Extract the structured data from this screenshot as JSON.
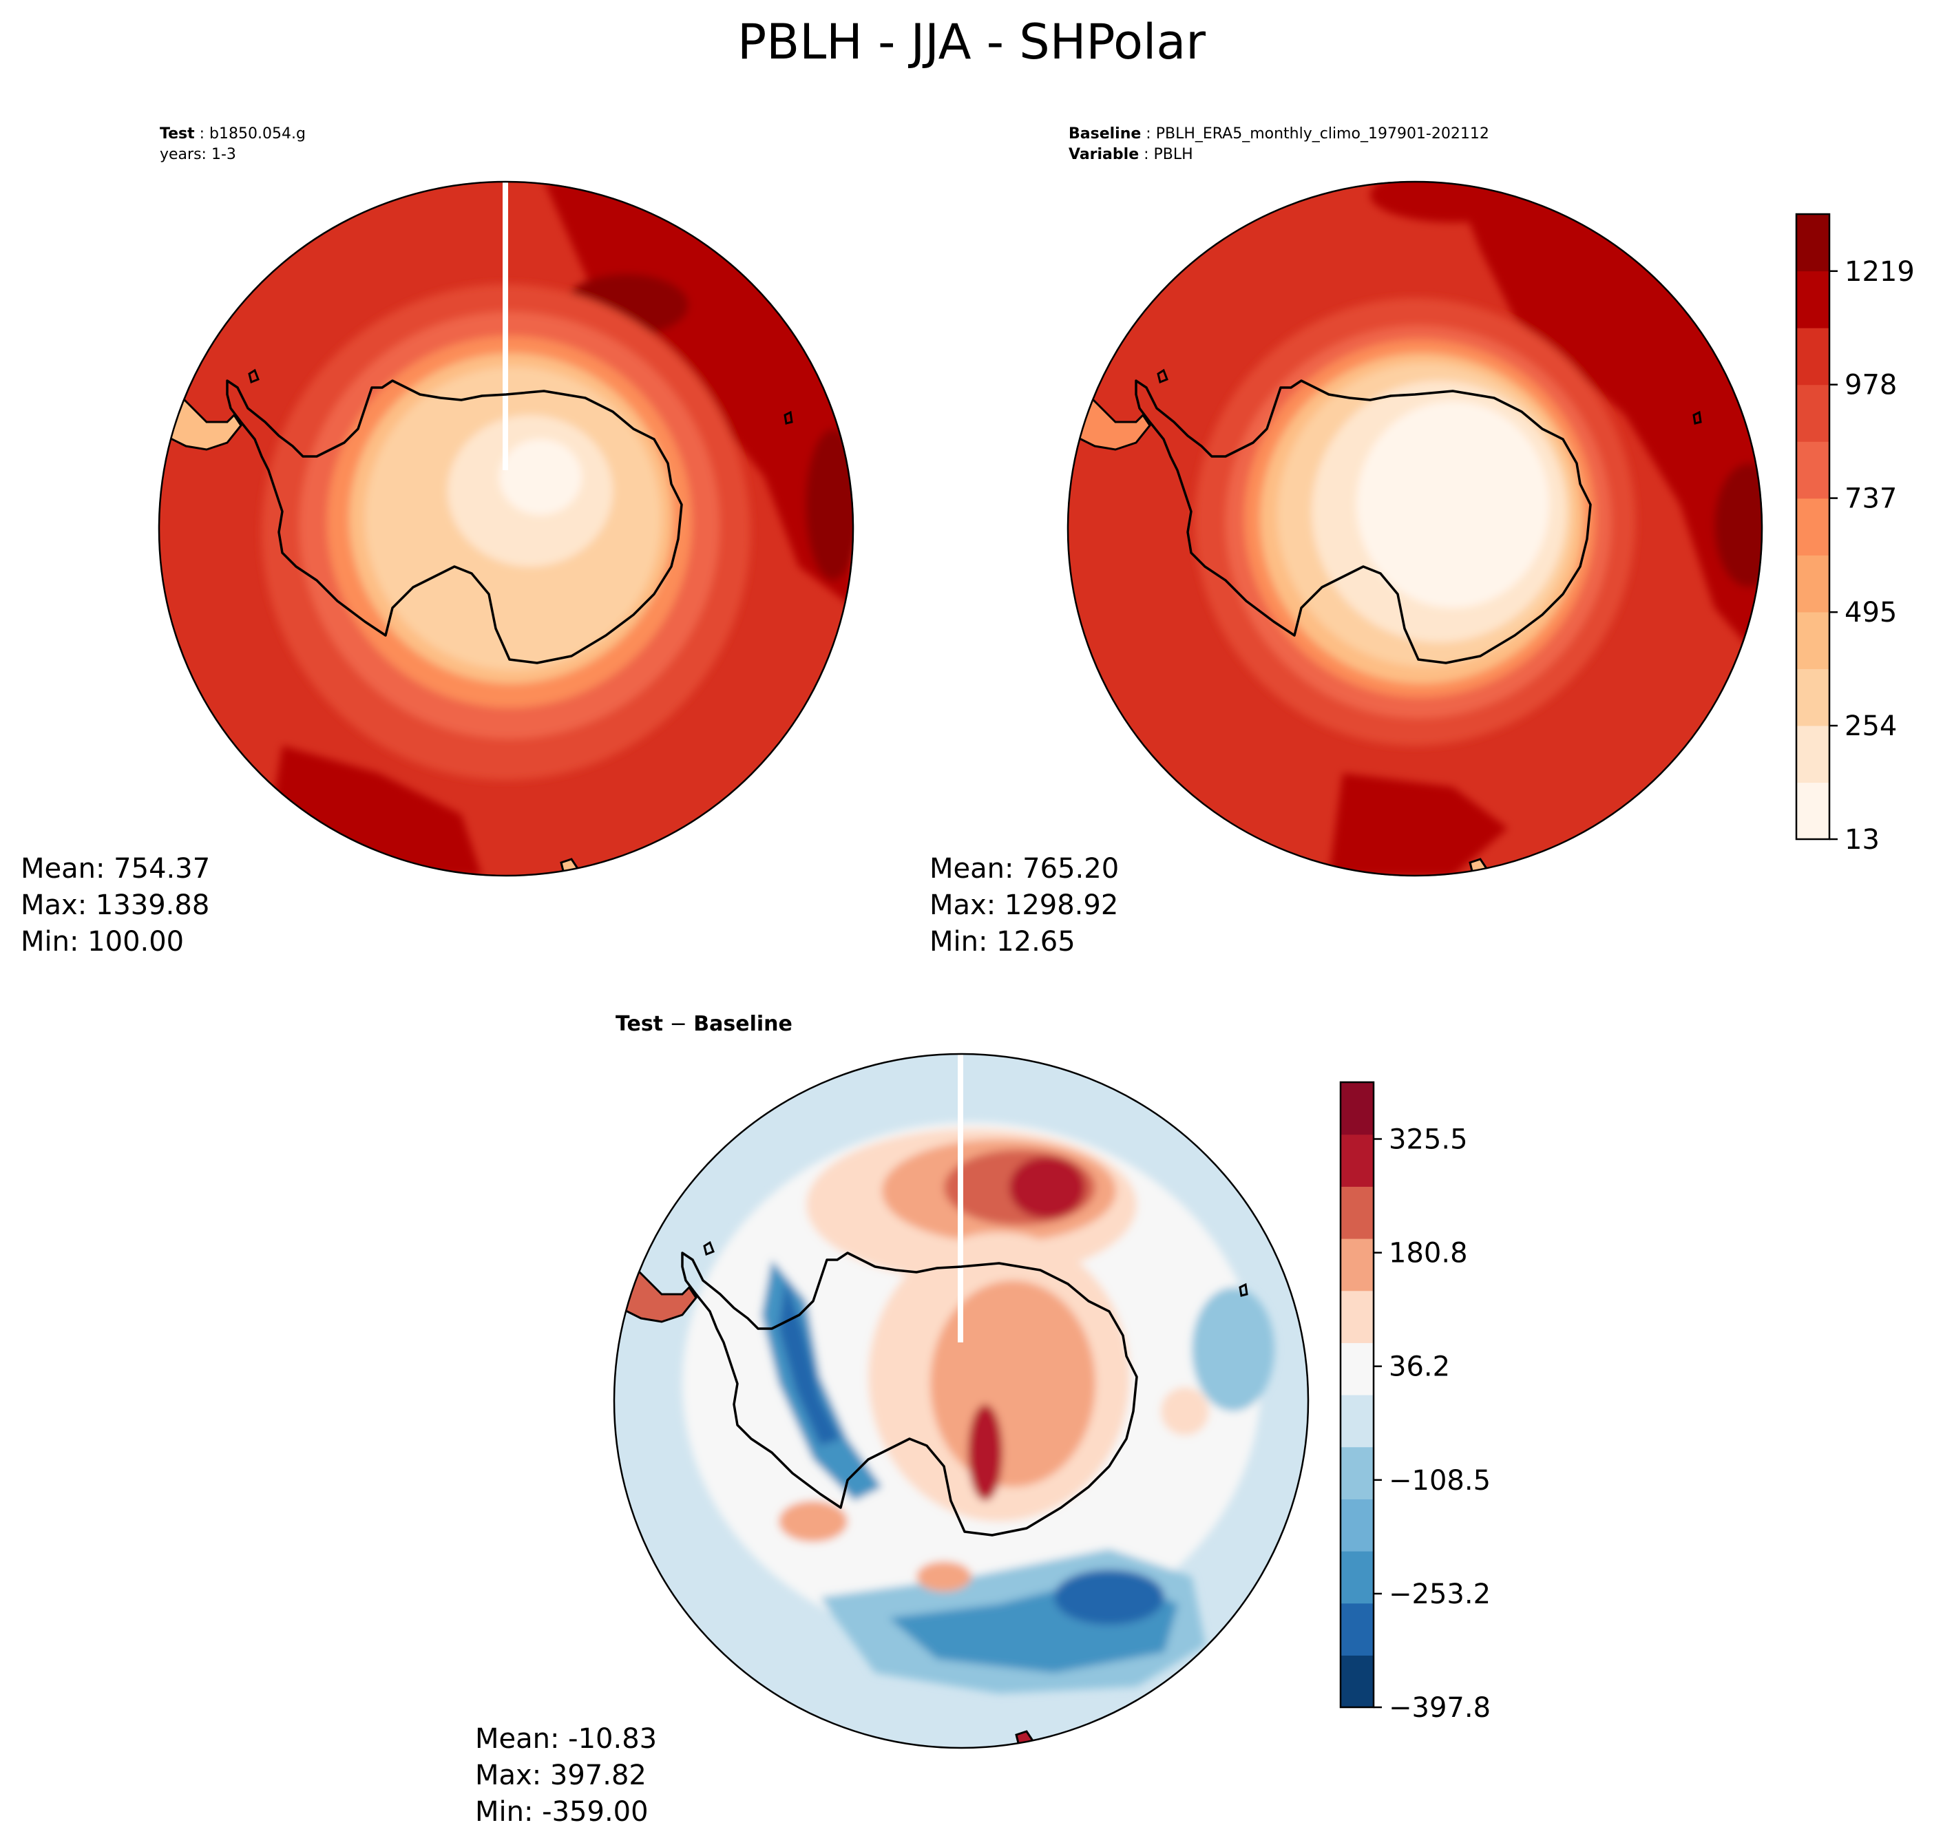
{
  "title": "PBLH - JJA - SHPolar",
  "panels": {
    "test": {
      "label_key": "Test",
      "label_value": "b1850.054.g",
      "years": "years: 1-3",
      "stats": {
        "mean": "Mean: 754.37",
        "max": "Max: 1339.88",
        "min": "Min: 100.00"
      }
    },
    "baseline": {
      "label_key": "Baseline",
      "label_value": "PBLH_ERA5_monthly_climo_197901-202112",
      "variable_key": "Variable",
      "variable_value": "PBLH",
      "stats": {
        "mean": "Mean: 765.20",
        "max": "Max: 1298.92",
        "min": "Min: 12.65"
      }
    },
    "diff": {
      "title_a": "Test",
      "title_sep": " − ",
      "title_b": "Baseline",
      "stats": {
        "mean": "Mean: -10.83",
        "max": "Max: 397.82",
        "min": "Min: -359.00"
      }
    }
  },
  "chart_data": [
    {
      "type": "heatmap",
      "name": "test",
      "projection": "south polar stereographic",
      "variable": "PBLH",
      "mean": 754.37,
      "max": 1339.88,
      "min": 100.0
    },
    {
      "type": "heatmap",
      "name": "baseline",
      "projection": "south polar stereographic",
      "variable": "PBLH",
      "mean": 765.2,
      "max": 1298.92,
      "min": 12.65,
      "colorbar": {
        "range": [
          13,
          1340
        ],
        "ticks": [
          13,
          254,
          495,
          737,
          978,
          1219
        ],
        "tick_labels": [
          "13",
          "254",
          "495",
          "737",
          "978",
          "1219"
        ],
        "colors": [
          "#fff5eb",
          "#fee6ce",
          "#fdd0a2",
          "#fdbe85",
          "#fca66c",
          "#fc8d59",
          "#ef6548",
          "#e34a33",
          "#d7301f",
          "#b30000",
          "#8c0000"
        ]
      }
    },
    {
      "type": "heatmap",
      "name": "difference",
      "projection": "south polar stereographic",
      "variable": "PBLH",
      "mean": -10.83,
      "max": 397.82,
      "min": -359.0,
      "colorbar": {
        "range": [
          -397.8,
          397.8
        ],
        "ticks": [
          -397.8,
          -253.2,
          -108.5,
          36.2,
          180.8,
          325.5
        ],
        "tick_labels": [
          "−397.8",
          "−253.2",
          "−108.5",
          "36.2",
          "180.8",
          "325.5"
        ],
        "colors": [
          "#0b3e72",
          "#2166ac",
          "#4393c3",
          "#6fb0d6",
          "#92c5de",
          "#d1e5f0",
          "#f7f7f7",
          "#fddbc7",
          "#f4a582",
          "#d6604d",
          "#b2182b",
          "#8b0a26"
        ]
      }
    }
  ],
  "colors": {
    "seq": [
      "#fff5eb",
      "#fee6ce",
      "#fdd0a2",
      "#fdbe85",
      "#fca66c",
      "#fc8d59",
      "#ef6548",
      "#e34a33",
      "#d7301f",
      "#b30000",
      "#8c0000"
    ],
    "div": [
      "#0b3e72",
      "#2166ac",
      "#4393c3",
      "#6fb0d6",
      "#92c5de",
      "#d1e5f0",
      "#f7f7f7",
      "#fddbc7",
      "#f4a582",
      "#d6604d",
      "#b2182b",
      "#8b0a26"
    ]
  }
}
